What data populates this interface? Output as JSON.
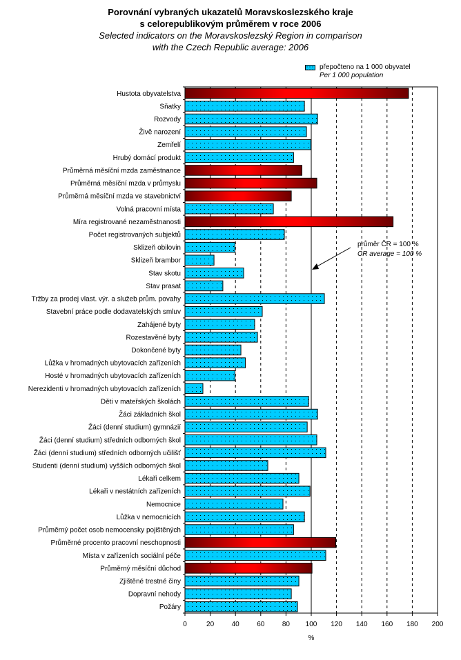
{
  "chart_data": {
    "type": "bar",
    "orientation": "horizontal",
    "title": "Porovnání vybraných ukazatelů Moravskoslezského kraje s celorepublikovým průměrem v roce 2006",
    "title_lines": [
      "Porovnání vybraných ukazatelů Moravskoslezského kraje",
      "s celorepublikovým průměrem v roce 2006"
    ],
    "subtitle": "Selected indicators on the Moravskoslezský Region in comparison with the Czech Republic average: 2006",
    "subtitle_lines": [
      "Selected indicators on the Moravskoslezský Region in comparison",
      "with the Czech Republic average: 2006"
    ],
    "xlabel": "%",
    "ylabel": "",
    "xlim": [
      0,
      200
    ],
    "xticks": [
      0,
      20,
      40,
      60,
      80,
      100,
      120,
      140,
      160,
      180,
      200
    ],
    "grid": "vertical dashed at 120-180, solid reference at 100",
    "legend": {
      "placement": "top-right",
      "entries": [
        {
          "label": "přepočteno na 1 000 obyvatel",
          "label_en": "Per 1 000 population",
          "color": "#00ccff",
          "pattern": "dotted"
        }
      ]
    },
    "annotation": {
      "text": "průměr ČR = 100 %",
      "text_en": "CR average = 100 %",
      "points_to": 100
    },
    "colors": {
      "per_capita": "#00ccff",
      "other_dark": "#6b0000",
      "other_bright": "#ff0000"
    },
    "categories": [
      "Hustota obyvatelstva",
      "Sňatky",
      "Rozvody",
      "Živě narození",
      "Zemřelí",
      "Hrubý domácí produkt",
      "Průměrná měsíční mzda zaměstnance",
      "Průměrná měsíční mzda v průmyslu",
      "Průměrná měsíční mzda ve stavebnictví",
      "Volná pracovní místa",
      "Míra registrované nezaměstnanosti",
      "Počet registrovaných subjektů",
      "Sklizeň obilovin",
      "Sklizeň brambor",
      "Stav skotu",
      "Stav prasat",
      "Tržby za prodej vlast. výr. a služeb prům. povahy",
      "Stavební práce podle dodavatelských smluv",
      "Zahájené byty",
      "Rozestavěné byty",
      "Dokončené byty",
      "Lůžka v hromadných ubytovacích zařízeních",
      "Hosté v hromadných ubytovacích zařízeních",
      "Nerezidenti v hromadných ubytovacích zařízeních",
      "Děti v mateřských školách",
      "Žáci základních škol",
      "Žáci (denní studium) gymnázií",
      "Žáci (denní studium) středních odborných škol",
      "Žáci (denní studium) středních odborných učilišť",
      "Studenti (denní studium) vyšších odborných škol",
      "Lékaři celkem",
      "Lékaři v nestátních zařízeních",
      "Nemocnice",
      "Lůžka v nemocnicích",
      "Průměrný počet osob nemocensky pojištěných",
      "Průměrné procento pracovní neschopnosti",
      "Místa v zařízeních sociální péče",
      "Průměrný měsíční důchod",
      "Zjištěné trestné činy",
      "Dopravní nehody",
      "Požáry"
    ],
    "values": [
      177,
      94.6,
      105,
      96.2,
      99.7,
      86,
      92.6,
      104.4,
      84.2,
      70,
      164.8,
      78.7,
      39.6,
      23,
      46.5,
      30,
      110.4,
      61.2,
      55.2,
      57.4,
      44.3,
      47.8,
      39.6,
      14.2,
      97.9,
      105,
      96.8,
      104.4,
      111.5,
      65.6,
      90.2,
      99,
      77.6,
      94.6,
      86,
      119.4,
      111.5,
      100.6,
      90.2,
      84.2,
      89.1
    ],
    "per_capita": [
      false,
      true,
      true,
      true,
      true,
      true,
      false,
      false,
      false,
      true,
      false,
      true,
      true,
      true,
      true,
      true,
      true,
      true,
      true,
      true,
      true,
      true,
      true,
      true,
      true,
      true,
      true,
      true,
      true,
      true,
      true,
      true,
      true,
      true,
      true,
      false,
      true,
      false,
      true,
      true,
      true
    ]
  }
}
